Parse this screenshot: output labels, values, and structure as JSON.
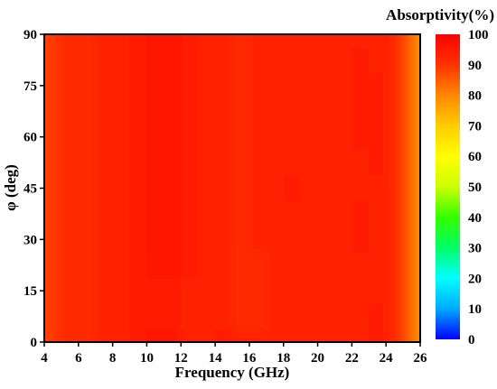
{
  "chart_data": {
    "type": "heatmap",
    "xlabel": "Frequency (GHz)",
    "ylabel": "φ (deg)",
    "xlim": [
      4,
      26
    ],
    "ylim": [
      0,
      90
    ],
    "xticks": [
      4,
      6,
      8,
      10,
      12,
      14,
      16,
      18,
      20,
      22,
      24,
      26
    ],
    "yticks": [
      0,
      15,
      30,
      45,
      60,
      75,
      90
    ],
    "colorbar": {
      "title": "Absorptivity(%)",
      "range": [
        0,
        100
      ],
      "ticks": [
        0,
        10,
        20,
        30,
        40,
        50,
        60,
        70,
        80,
        90,
        100
      ],
      "colors": [
        "#0000ff",
        "#00aaff",
        "#00ffff",
        "#00ff66",
        "#33ff00",
        "#ccff00",
        "#ffff00",
        "#ffcc00",
        "#ff8800",
        "#ff3300",
        "#ff0000"
      ]
    },
    "grid": false,
    "frequency_GHz": [
      4.0,
      4.4,
      4.8,
      5.5,
      6.5,
      7.5,
      8.5,
      9.5,
      10.5,
      11.5,
      12.5,
      13.5,
      14.5,
      15.5,
      16.5,
      17.5,
      18.5,
      19.5,
      20.5,
      21.5,
      22.5,
      23.5,
      24.2,
      24.8,
      25.2,
      25.6,
      26.0
    ],
    "phi_deg": [
      0,
      7.5,
      15,
      22.5,
      30,
      37.5,
      45,
      52.5,
      60,
      67.5,
      75,
      82.5,
      90
    ],
    "absorptivity_percent": [
      [
        88,
        89,
        91,
        92,
        92,
        93,
        93,
        95,
        96,
        96,
        93,
        93,
        94,
        93,
        93,
        93,
        93,
        93,
        93,
        93,
        93,
        94,
        93,
        90,
        87,
        83,
        78
      ],
      [
        88,
        89,
        91,
        92,
        92,
        93,
        93,
        94,
        95,
        95,
        93,
        93,
        93,
        92,
        92,
        93,
        93,
        93,
        93,
        93,
        93,
        94,
        93,
        90,
        87,
        83,
        78
      ],
      [
        88,
        89,
        91,
        92,
        92,
        93,
        93,
        94,
        95,
        95,
        93,
        93,
        93,
        92,
        92,
        93,
        93,
        93,
        93,
        93,
        93,
        93,
        93,
        90,
        87,
        83,
        78
      ],
      [
        88,
        89,
        91,
        92,
        92,
        93,
        93,
        94,
        96,
        96,
        94,
        93,
        93,
        92,
        92,
        93,
        93,
        93,
        93,
        93,
        93,
        93,
        93,
        90,
        87,
        83,
        78
      ],
      [
        88,
        89,
        91,
        92,
        92,
        93,
        93,
        95,
        96,
        96,
        95,
        93,
        93,
        92,
        93,
        93,
        93,
        93,
        93,
        93,
        94,
        93,
        93,
        90,
        87,
        83,
        78
      ],
      [
        88,
        89,
        91,
        92,
        92,
        93,
        93,
        95,
        96,
        96,
        95,
        93,
        93,
        92,
        93,
        93,
        93,
        93,
        93,
        93,
        94,
        93,
        93,
        90,
        87,
        83,
        78
      ],
      [
        88,
        89,
        91,
        92,
        92,
        93,
        93,
        95,
        96,
        96,
        95,
        93,
        93,
        92,
        93,
        93,
        94,
        93,
        93,
        93,
        93,
        93,
        93,
        90,
        87,
        83,
        78
      ],
      [
        88,
        89,
        91,
        92,
        92,
        93,
        93,
        95,
        96,
        96,
        95,
        93,
        93,
        92,
        93,
        93,
        93,
        93,
        93,
        93,
        93,
        94,
        93,
        90,
        87,
        83,
        78
      ],
      [
        88,
        89,
        91,
        92,
        92,
        93,
        93,
        95,
        96,
        96,
        95,
        93,
        93,
        92,
        93,
        93,
        93,
        93,
        93,
        93,
        94,
        94,
        93,
        90,
        87,
        83,
        78
      ],
      [
        88,
        89,
        91,
        92,
        92,
        93,
        93,
        95,
        96,
        96,
        95,
        93,
        93,
        92,
        93,
        93,
        93,
        93,
        93,
        93,
        94,
        94,
        93,
        90,
        87,
        83,
        78
      ],
      [
        88,
        89,
        91,
        92,
        92,
        93,
        93,
        95,
        96,
        96,
        95,
        93,
        93,
        92,
        93,
        93,
        93,
        93,
        93,
        93,
        94,
        94,
        93,
        90,
        87,
        83,
        78
      ],
      [
        88,
        89,
        91,
        92,
        92,
        93,
        93,
        95,
        96,
        96,
        95,
        93,
        93,
        92,
        93,
        93,
        93,
        93,
        93,
        93,
        94,
        93,
        93,
        90,
        87,
        83,
        78
      ],
      [
        88,
        89,
        91,
        92,
        92,
        93,
        93,
        95,
        96,
        96,
        95,
        93,
        93,
        92,
        93,
        93,
        93,
        93,
        93,
        93,
        93,
        93,
        93,
        90,
        87,
        83,
        78
      ]
    ]
  }
}
